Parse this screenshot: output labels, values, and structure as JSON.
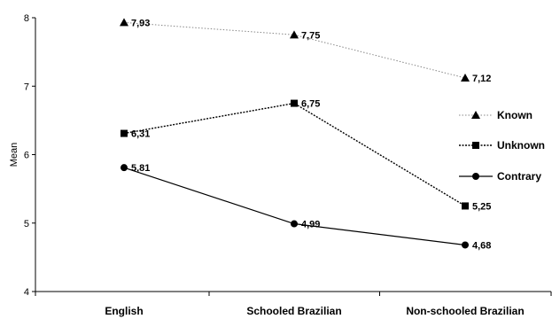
{
  "chart_data": {
    "type": "line",
    "title": "",
    "xlabel": "",
    "ylabel": "Mean",
    "ylim": [
      4,
      8
    ],
    "yticks": [
      "4",
      "5",
      "6",
      "7",
      "8"
    ],
    "categories": [
      "English",
      "Schooled Brazilian",
      "Non-schooled Brazilian"
    ],
    "legend_position": "right",
    "grid": false,
    "series": [
      {
        "name": "Known",
        "values": [
          7.93,
          7.75,
          7.12
        ],
        "labels": [
          "7,93",
          "7,75",
          "7,12"
        ],
        "marker": "triangle",
        "line_style": "dotted-light",
        "color": "#000000"
      },
      {
        "name": "Unknown",
        "values": [
          6.31,
          6.75,
          5.25
        ],
        "labels": [
          "6,31",
          "6,75",
          "5,25"
        ],
        "marker": "square",
        "line_style": "dotted-dense",
        "color": "#000000"
      },
      {
        "name": "Contrary",
        "values": [
          5.81,
          4.99,
          4.68
        ],
        "labels": [
          "5,81",
          "4,99",
          "4,68"
        ],
        "marker": "circle",
        "line_style": "solid",
        "color": "#000000"
      }
    ]
  }
}
